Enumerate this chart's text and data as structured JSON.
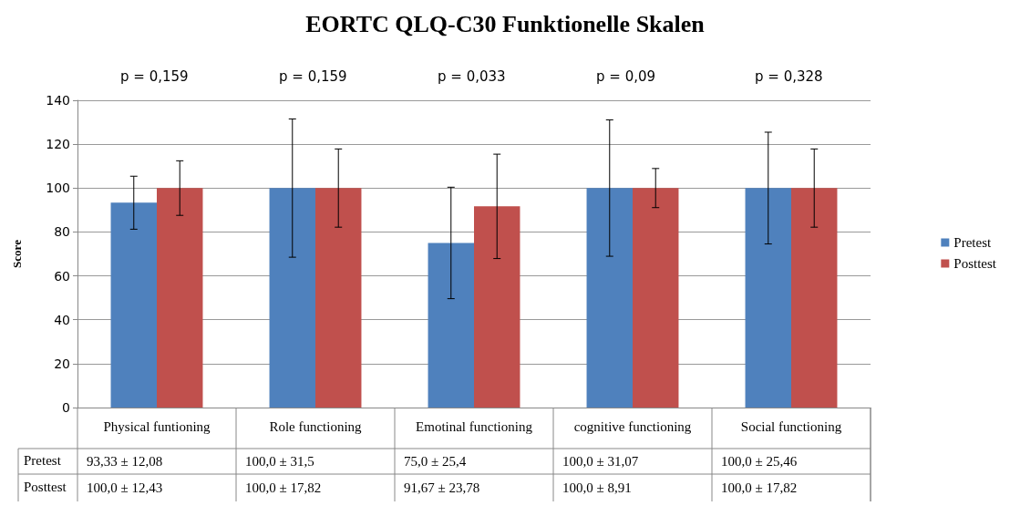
{
  "chart_data": {
    "type": "bar",
    "title": "EORTC QLQ-C30 Funktionelle Skalen",
    "ylabel": "Score",
    "categories": [
      "Physical funtioning",
      "Role functioning",
      "Emotinal functioning",
      "cognitive functioning",
      "Social functioning"
    ],
    "series": [
      {
        "name": "Pretest",
        "color": "#4f81bd",
        "values": [
          93.33,
          100.0,
          75.0,
          100.0,
          100.0
        ],
        "errors": [
          12.08,
          31.5,
          25.4,
          31.07,
          25.46
        ],
        "value_labels": [
          "93,33 ± 12,08",
          "100,0 ± 31,5",
          "75,0 ± 25,4",
          "100,0 ± 31,07",
          "100,0 ± 25,46"
        ]
      },
      {
        "name": "Posttest",
        "color": "#c0504d",
        "values": [
          100.0,
          100.0,
          91.67,
          100.0,
          100.0
        ],
        "errors": [
          12.43,
          17.82,
          23.78,
          8.91,
          17.82
        ],
        "value_labels": [
          "100,0 ± 12,43",
          "100,0 ± 17,82",
          "91,67 ± 23,78",
          "100,0 ± 8,91",
          "100,0 ± 17,82"
        ]
      }
    ],
    "annotations": [
      "p = 0,159",
      "p = 0,159",
      "p = 0,033",
      "p = 0,09",
      "p = 0,328"
    ],
    "ylim": [
      0,
      140
    ],
    "yticks": [
      0,
      20,
      40,
      60,
      80,
      100,
      120,
      140
    ],
    "grid": "y",
    "legend": "right"
  }
}
